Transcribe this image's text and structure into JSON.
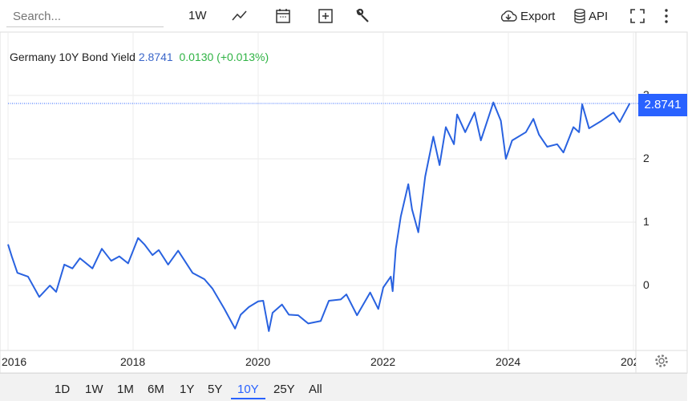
{
  "toolbar": {
    "search_placeholder": "Search...",
    "interval": "1W",
    "export": "Export",
    "api": "API",
    "icons": [
      "line-chart-icon",
      "calendar-icon",
      "add-icon",
      "wrench-icon",
      "cloud-download-icon",
      "database-icon",
      "fullscreen-icon",
      "more-vertical-icon"
    ]
  },
  "header": {
    "name": "Germany 10Y Bond Yield",
    "value": "2.8741",
    "change": "0.0130 (+0.013%)",
    "value_color": "#3a66c9",
    "change_color": "#2fb344"
  },
  "price_label": "2.8741",
  "ranges": [
    "1D",
    "1W",
    "1M",
    "6M",
    "1Y",
    "5Y",
    "10Y",
    "25Y",
    "All"
  ],
  "active_range": "10Y",
  "chart_data": {
    "type": "line",
    "line_color": "#2962e0",
    "y_ticks": [
      "3",
      "2",
      "1",
      "0"
    ],
    "x_ticks": [
      "2016",
      "2018",
      "2020",
      "2022",
      "2024",
      "202"
    ],
    "ylim": [
      -1.03,
      3.6
    ],
    "xlim": [
      2016,
      2026
    ],
    "grid": true,
    "last_value": 2.8741,
    "x": [
      2016.0,
      2016.06,
      2016.15,
      2016.32,
      2016.5,
      2016.67,
      2016.77,
      2016.9,
      2017.03,
      2017.15,
      2017.35,
      2017.5,
      2017.65,
      2017.78,
      2017.92,
      2018.08,
      2018.18,
      2018.31,
      2018.41,
      2018.56,
      2018.72,
      2018.95,
      2019.14,
      2019.27,
      2019.46,
      2019.63,
      2019.72,
      2019.85,
      2020.0,
      2020.08,
      2020.17,
      2020.23,
      2020.38,
      2020.49,
      2020.64,
      2020.8,
      2021.0,
      2021.13,
      2021.32,
      2021.41,
      2021.58,
      2021.79,
      2021.92,
      2022.0,
      2022.12,
      2022.15,
      2022.2,
      2022.28,
      2022.4,
      2022.46,
      2022.56,
      2022.67,
      2022.8,
      2022.9,
      2023.0,
      2023.13,
      2023.18,
      2023.31,
      2023.46,
      2023.56,
      2023.76,
      2023.88,
      2023.96,
      2024.06,
      2024.28,
      2024.4,
      2024.49,
      2024.62,
      2024.78,
      2024.88,
      2025.04,
      2025.13,
      2025.18,
      2025.29,
      2025.49,
      2025.68,
      2025.78,
      2025.94
    ],
    "y": [
      0.65,
      0.46,
      0.2,
      0.14,
      -0.18,
      0.0,
      -0.1,
      0.33,
      0.27,
      0.43,
      0.27,
      0.58,
      0.39,
      0.46,
      0.35,
      0.75,
      0.65,
      0.48,
      0.56,
      0.33,
      0.55,
      0.2,
      0.1,
      -0.05,
      -0.37,
      -0.68,
      -0.46,
      -0.34,
      -0.25,
      -0.24,
      -0.72,
      -0.43,
      -0.3,
      -0.46,
      -0.47,
      -0.6,
      -0.56,
      -0.24,
      -0.22,
      -0.14,
      -0.47,
      -0.11,
      -0.37,
      -0.03,
      0.14,
      -0.09,
      0.58,
      1.09,
      1.6,
      1.2,
      0.84,
      1.72,
      2.35,
      1.9,
      2.5,
      2.23,
      2.7,
      2.42,
      2.73,
      2.29,
      2.89,
      2.6,
      2.0,
      2.29,
      2.42,
      2.63,
      2.38,
      2.19,
      2.23,
      2.1,
      2.5,
      2.42,
      2.86,
      2.48,
      2.6,
      2.73,
      2.58,
      2.8741
    ]
  }
}
